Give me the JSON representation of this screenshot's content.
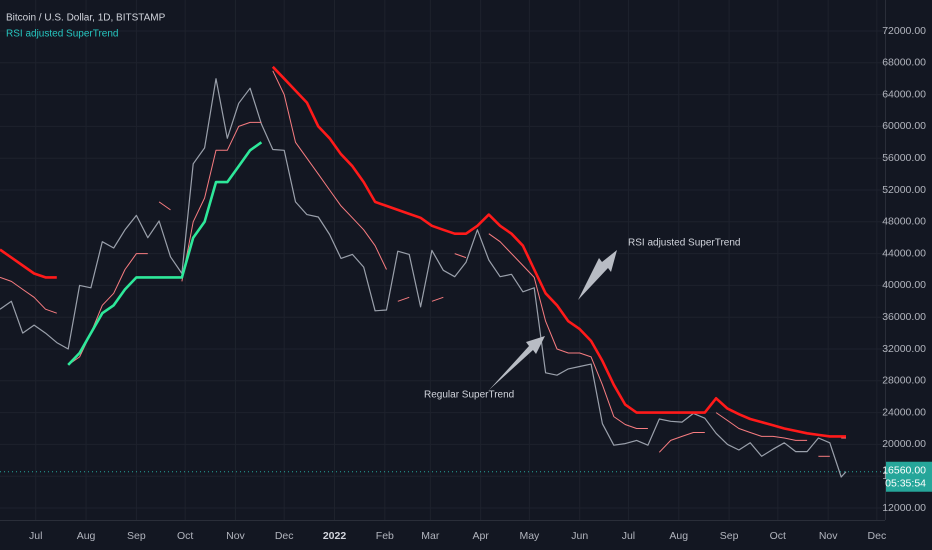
{
  "chart_data": {
    "type": "line",
    "title": "Bitcoin / U.S. Dollar, 1D, BITSTAMP",
    "subtitle": "RSI adjusted SuperTrend",
    "annotations": [
      "RSI adjusted SuperTrend",
      "Regular SuperTrend"
    ],
    "x": [
      0,
      7,
      14,
      21,
      28,
      35,
      42,
      49,
      56,
      63,
      70,
      77,
      84,
      91,
      98,
      105,
      112,
      119,
      126,
      133,
      140,
      147,
      154,
      161,
      168,
      175,
      182,
      189,
      196,
      203,
      210,
      217,
      224,
      231,
      238,
      245,
      252,
      259,
      266,
      273,
      280,
      287,
      294,
      301,
      308,
      315,
      322,
      329,
      336,
      343,
      350,
      357,
      364,
      371,
      378,
      385,
      392,
      399,
      406,
      413,
      420,
      427,
      434,
      441,
      448,
      455,
      462,
      469,
      476,
      483,
      490,
      497,
      504,
      511,
      518,
      521
    ],
    "xlim": [
      0,
      545
    ],
    "xticks": [
      {
        "value": 22,
        "label": "Jul"
      },
      {
        "value": 53,
        "label": "Aug"
      },
      {
        "value": 84,
        "label": "Sep"
      },
      {
        "value": 114,
        "label": "Oct"
      },
      {
        "value": 145,
        "label": "Nov"
      },
      {
        "value": 175,
        "label": "Dec"
      },
      {
        "value": 206,
        "label": "2022"
      },
      {
        "value": 237,
        "label": "Feb"
      },
      {
        "value": 265,
        "label": "Mar"
      },
      {
        "value": 296,
        "label": "Apr"
      },
      {
        "value": 326,
        "label": "May"
      },
      {
        "value": 357,
        "label": "Jun"
      },
      {
        "value": 387,
        "label": "Jul"
      },
      {
        "value": 418,
        "label": "Aug"
      },
      {
        "value": 449,
        "label": "Sep"
      },
      {
        "value": 479,
        "label": "Oct"
      },
      {
        "value": 510,
        "label": "Nov"
      },
      {
        "value": 540,
        "label": "Dec"
      }
    ],
    "ylim": [
      10490,
      75900
    ],
    "yticks": [
      {
        "value": 12000,
        "label": "12000.00"
      },
      {
        "value": 16000,
        "label": "16000.00"
      },
      {
        "value": 20000,
        "label": "20000.00"
      },
      {
        "value": 24000,
        "label": "24000.00"
      },
      {
        "value": 28000,
        "label": "28000.00"
      },
      {
        "value": 32000,
        "label": "32000.00"
      },
      {
        "value": 36000,
        "label": "36000.00"
      },
      {
        "value": 40000,
        "label": "40000.00"
      },
      {
        "value": 44000,
        "label": "44000.00"
      },
      {
        "value": 48000,
        "label": "48000.00"
      },
      {
        "value": 52000,
        "label": "52000.00"
      },
      {
        "value": 56000,
        "label": "56000.00"
      },
      {
        "value": 60000,
        "label": "60000.00"
      },
      {
        "value": 64000,
        "label": "64000.00"
      },
      {
        "value": 68000,
        "label": "68000.00"
      },
      {
        "value": 72000,
        "label": "72000.00"
      }
    ],
    "grid": true,
    "last_price": {
      "value": 16560,
      "label": "16560.00",
      "countdown": "05:35:54",
      "color": "#26a69a"
    },
    "series": [
      {
        "color": "#9aa0ab",
        "width": 1.2,
        "values": [
          37000,
          38000,
          34000,
          35000,
          34000,
          32800,
          32000,
          40000,
          39700,
          45500,
          44700,
          47000,
          48800,
          46000,
          48100,
          43600,
          41500,
          55300,
          57300,
          66000,
          58500,
          62900,
          64800,
          60300,
          57100,
          57000,
          50500,
          48900,
          48600,
          46400,
          43400,
          43900,
          42300,
          36800,
          36900,
          44300,
          43900,
          37300,
          44400,
          41900,
          41100,
          42900,
          47000,
          43200,
          41100,
          41400,
          39200,
          39700,
          29000,
          28700,
          29500,
          29800,
          30100,
          22600,
          19900,
          20100,
          20500,
          19900,
          23200,
          22900,
          22800,
          23900,
          23300,
          21400,
          20000,
          19300,
          20200,
          18500,
          19400,
          20200,
          19100,
          19100,
          20800,
          20200,
          15900,
          16560
        ]
      },
      {
        "up_color": "#f77c80",
        "down_color": "#f77c80",
        "width": 1,
        "values": [
          41000,
          40500,
          39500,
          38500,
          37000,
          36500,
          30000,
          31000,
          34000,
          37500,
          39000,
          42000,
          44000,
          44000,
          50500,
          49500,
          40500,
          48000,
          51000,
          57000,
          57000,
          60000,
          60500,
          60500,
          67000,
          64000,
          58000,
          56000,
          54000,
          52000,
          50000,
          48500,
          47000,
          45000,
          42000,
          38000,
          38500,
          45000,
          38000,
          38500,
          44000,
          43500,
          40500,
          46500,
          45500,
          44000,
          42500,
          41000,
          35500,
          32000,
          31500,
          31500,
          31000,
          27500,
          23500,
          22500,
          22000,
          22000,
          19000,
          20500,
          21000,
          21500,
          21500,
          24000,
          23000,
          22000,
          21500,
          21000,
          21000,
          20800,
          20500,
          20500,
          18500,
          18500,
          20800,
          20800
        ],
        "trend": [
          -1,
          -1,
          -1,
          -1,
          -1,
          -1,
          1,
          1,
          1,
          1,
          1,
          1,
          1,
          1,
          -1,
          -1,
          1,
          1,
          1,
          1,
          1,
          1,
          1,
          1,
          -1,
          -1,
          -1,
          -1,
          -1,
          -1,
          -1,
          -1,
          -1,
          -1,
          -1,
          1,
          1,
          -1,
          1,
          1,
          -1,
          -1,
          1,
          -1,
          -1,
          -1,
          -1,
          -1,
          -1,
          -1,
          -1,
          -1,
          -1,
          -1,
          -1,
          -1,
          -1,
          -1,
          1,
          1,
          1,
          1,
          1,
          -1,
          -1,
          -1,
          -1,
          -1,
          -1,
          -1,
          -1,
          -1,
          1,
          1,
          -1,
          -1
        ]
      },
      {
        "up_color": "#2ee89a",
        "down_color": "#ff1a1a",
        "width": 2.6,
        "values": [
          44500,
          43500,
          42500,
          41500,
          41000,
          41000,
          30000,
          31500,
          34000,
          36500,
          37500,
          39500,
          41000,
          41000,
          41000,
          41000,
          41000,
          46000,
          48000,
          53000,
          53000,
          55000,
          57000,
          58000,
          67500,
          66000,
          64500,
          63000,
          60000,
          58500,
          56500,
          55000,
          53000,
          50500,
          50000,
          49500,
          49000,
          48500,
          47500,
          47000,
          46500,
          46500,
          47500,
          48900,
          47500,
          46500,
          45000,
          42000,
          39000,
          37500,
          35500,
          34500,
          33000,
          30500,
          27500,
          25000,
          24000,
          24000,
          24000,
          24000,
          24000,
          24000,
          24000,
          25800,
          24500,
          23800,
          23200,
          22800,
          22400,
          22000,
          21700,
          21400,
          21200,
          21000,
          21000,
          21000
        ],
        "trend": [
          -1,
          -1,
          -1,
          -1,
          -1,
          -1,
          1,
          1,
          1,
          1,
          1,
          1,
          1,
          1,
          1,
          1,
          1,
          1,
          1,
          1,
          1,
          1,
          1,
          1,
          -1,
          -1,
          -1,
          -1,
          -1,
          -1,
          -1,
          -1,
          -1,
          -1,
          -1,
          -1,
          -1,
          -1,
          -1,
          -1,
          -1,
          -1,
          -1,
          -1,
          -1,
          -1,
          -1,
          -1,
          -1,
          -1,
          -1,
          -1,
          -1,
          -1,
          -1,
          -1,
          -1,
          -1,
          -1,
          -1,
          -1,
          -1,
          -1,
          -1,
          -1,
          -1,
          -1,
          -1,
          -1,
          -1,
          -1,
          -1,
          -1,
          -1,
          -1,
          -1
        ]
      }
    ]
  }
}
